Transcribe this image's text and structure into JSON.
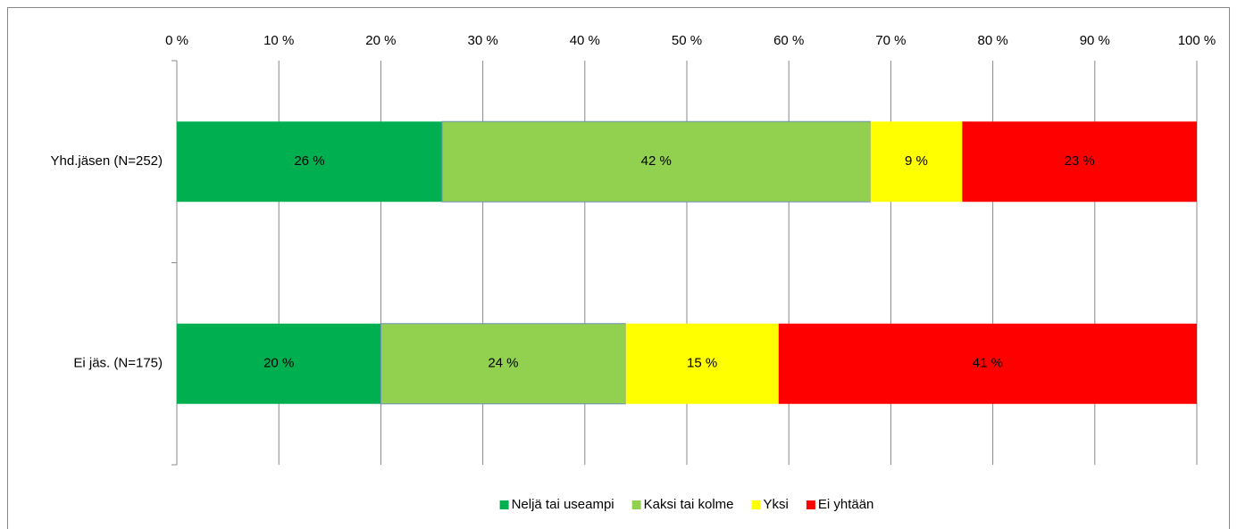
{
  "chart_data": {
    "type": "stacked-bar-horizontal",
    "categories": [
      "Yhd.jäsen (N=252)",
      "Ei jäs. (N=175)"
    ],
    "series": [
      {
        "name": "Neljä tai useampi",
        "color": "#00b050",
        "values": [
          26,
          20
        ],
        "value_labels": [
          "26 %",
          "20 %"
        ]
      },
      {
        "name": "Kaksi tai kolme",
        "color": "#92d050",
        "values": [
          42,
          24
        ],
        "value_labels": [
          "42 %",
          "24 %"
        ]
      },
      {
        "name": "Yksi",
        "color": "#ffff00",
        "values": [
          9,
          15
        ],
        "value_labels": [
          "9 %",
          "15 %"
        ]
      },
      {
        "name": "Ei yhtään",
        "color": "#ff0000",
        "values": [
          23,
          41
        ],
        "value_labels": [
          "23 %",
          "41 %"
        ]
      }
    ],
    "xlim": [
      0,
      100
    ],
    "xticks": [
      {
        "value": 0,
        "label": "0 %"
      },
      {
        "value": 10,
        "label": "10 %"
      },
      {
        "value": 20,
        "label": "20 %"
      },
      {
        "value": 30,
        "label": "30 %"
      },
      {
        "value": 40,
        "label": "40 %"
      },
      {
        "value": 50,
        "label": "50 %"
      },
      {
        "value": 60,
        "label": "60 %"
      },
      {
        "value": 70,
        "label": "70 %"
      },
      {
        "value": 80,
        "label": "80 %"
      },
      {
        "value": 90,
        "label": "90 %"
      },
      {
        "value": 100,
        "label": "100 %"
      }
    ],
    "grid": true,
    "legend": "bottom"
  }
}
